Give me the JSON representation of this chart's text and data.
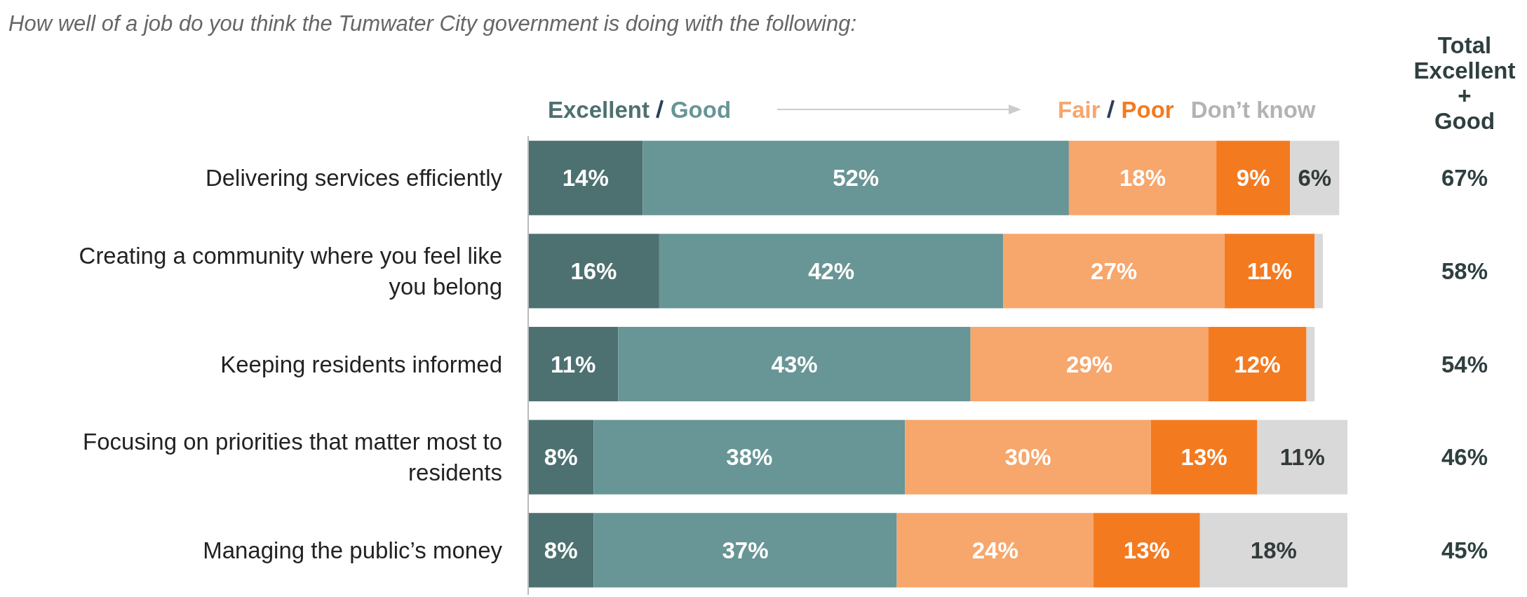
{
  "chart_data": {
    "type": "bar",
    "orientation": "horizontal",
    "stacked": true,
    "title": "How well of a job do you think the Tumwater City government is doing with the following:",
    "categories": [
      "Delivering services efficiently",
      "Creating a community where you feel like you belong",
      "Keeping residents informed",
      "Focusing on priorities that matter most to residents",
      "Managing the public’s money"
    ],
    "series": [
      {
        "name": "Excellent",
        "color": "#4d7170",
        "values": [
          14,
          16,
          11,
          8,
          8
        ],
        "value_labels": [
          "14%",
          "16%",
          "11%",
          "8%",
          "8%"
        ]
      },
      {
        "name": "Good",
        "color": "#689595",
        "values": [
          52,
          42,
          43,
          38,
          37
        ],
        "value_labels": [
          "52%",
          "42%",
          "43%",
          "38%",
          "37%"
        ]
      },
      {
        "name": "Fair",
        "color": "#f7a66c",
        "values": [
          18,
          27,
          29,
          30,
          24
        ],
        "value_labels": [
          "18%",
          "27%",
          "29%",
          "30%",
          "24%"
        ]
      },
      {
        "name": "Poor",
        "color": "#f47a20",
        "values": [
          9,
          11,
          12,
          13,
          13
        ],
        "value_labels": [
          "9%",
          "11%",
          "12%",
          "13%",
          "13%"
        ]
      },
      {
        "name": "Don’t know",
        "color": "#d9d9d9",
        "values": [
          6,
          1,
          1,
          11,
          18
        ],
        "value_labels": [
          "6%",
          null,
          null,
          "11%",
          "18%"
        ]
      }
    ],
    "legend": "top",
    "annotations": [
      "Total Excellent + Good",
      "67%",
      "58%",
      "54%",
      "46%",
      "45%"
    ]
  }
}
